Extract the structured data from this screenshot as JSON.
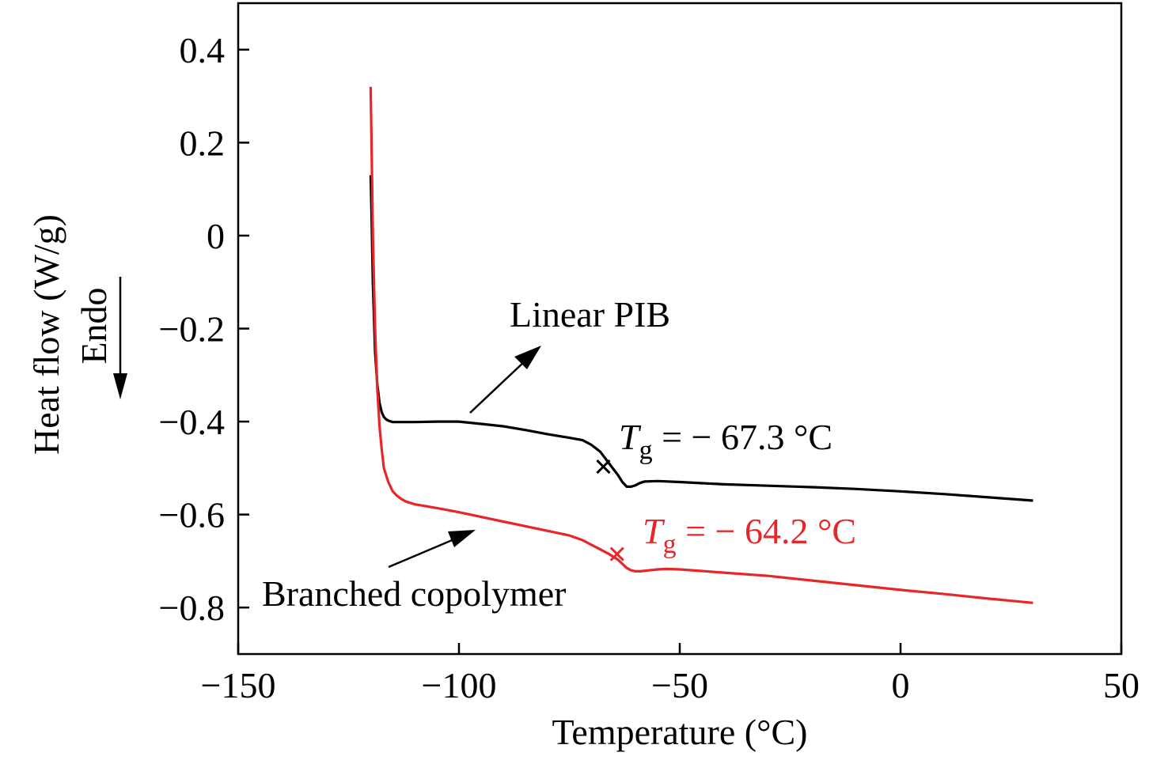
{
  "chart_data": {
    "type": "line",
    "xlabel": "Temperature (°C)",
    "ylabel": "Heat flow (W/g)",
    "endo_label": "Endo",
    "xlim": [
      -150,
      50
    ],
    "ylim": [
      -0.9,
      0.5
    ],
    "xticks": [
      -150,
      -100,
      -50,
      0,
      50
    ],
    "xtick_labels": [
      "−150",
      "−100",
      "−50",
      "0",
      "50"
    ],
    "yticks": [
      0.4,
      0.2,
      0,
      -0.2,
      -0.4,
      -0.6,
      -0.8
    ],
    "ytick_labels": [
      "0.4",
      "0.2",
      "0",
      "−0.2",
      "−0.4",
      "−0.6",
      "−0.8"
    ],
    "grid": false,
    "series": [
      {
        "name": "Linear PIB",
        "color": "#000000",
        "x": [
          -120,
          -119.8,
          -119.5,
          -119,
          -118.5,
          -118,
          -117.5,
          -117,
          -116.5,
          -116,
          -115,
          -113,
          -110,
          -105,
          -100,
          -95,
          -90,
          -85,
          -80,
          -75,
          -72,
          -70,
          -68,
          -66,
          -64,
          -63,
          -62,
          -61,
          -60,
          -59,
          -58,
          -55,
          -50,
          -40,
          -30,
          -20,
          -10,
          0,
          10,
          20,
          30
        ],
        "y": [
          0.13,
          0.05,
          -0.1,
          -0.25,
          -0.32,
          -0.36,
          -0.38,
          -0.39,
          -0.395,
          -0.398,
          -0.401,
          -0.401,
          -0.401,
          -0.4,
          -0.4,
          -0.405,
          -0.41,
          -0.418,
          -0.427,
          -0.435,
          -0.44,
          -0.45,
          -0.465,
          -0.49,
          -0.515,
          -0.53,
          -0.54,
          -0.54,
          -0.537,
          -0.532,
          -0.529,
          -0.528,
          -0.53,
          -0.535,
          -0.538,
          -0.541,
          -0.545,
          -0.55,
          -0.556,
          -0.563,
          -0.57
        ]
      },
      {
        "name": "Branched copolymer",
        "color": "#e8262a",
        "x": [
          -120,
          -119.8,
          -119.5,
          -119,
          -118.5,
          -118,
          -117.5,
          -117,
          -116,
          -115,
          -114,
          -113,
          -112,
          -110,
          -105,
          -100,
          -95,
          -90,
          -85,
          -80,
          -75,
          -72,
          -70,
          -68,
          -66,
          -64,
          -63,
          -62,
          -61,
          -60,
          -59,
          -57,
          -55,
          -53,
          -50,
          -40,
          -30,
          -20,
          -10,
          0,
          10,
          20,
          30
        ],
        "y": [
          0.32,
          0.2,
          0.0,
          -0.2,
          -0.33,
          -0.41,
          -0.46,
          -0.5,
          -0.53,
          -0.55,
          -0.56,
          -0.567,
          -0.572,
          -0.578,
          -0.586,
          -0.595,
          -0.605,
          -0.615,
          -0.625,
          -0.635,
          -0.645,
          -0.655,
          -0.665,
          -0.675,
          -0.685,
          -0.697,
          -0.706,
          -0.715,
          -0.72,
          -0.722,
          -0.722,
          -0.72,
          -0.718,
          -0.717,
          -0.718,
          -0.725,
          -0.732,
          -0.742,
          -0.752,
          -0.762,
          -0.771,
          -0.781,
          -0.79
        ]
      }
    ],
    "annotations": [
      {
        "id": "linear",
        "text": "Linear PIB",
        "color": "#000000"
      },
      {
        "id": "branched",
        "text": "Branched copolymer",
        "color": "#000000"
      },
      {
        "id": "tg_linear",
        "symbol": "T",
        "subscript": "g",
        "text": " = − 67.3 °C",
        "color": "#000000",
        "tg_x": -67.3,
        "tg_y": -0.497
      },
      {
        "id": "tg_branched",
        "symbol": "T",
        "subscript": "g",
        "text": " = − 64.2 °C",
        "color": "#e8262a",
        "tg_x": -64.2,
        "tg_y": -0.685
      }
    ]
  }
}
